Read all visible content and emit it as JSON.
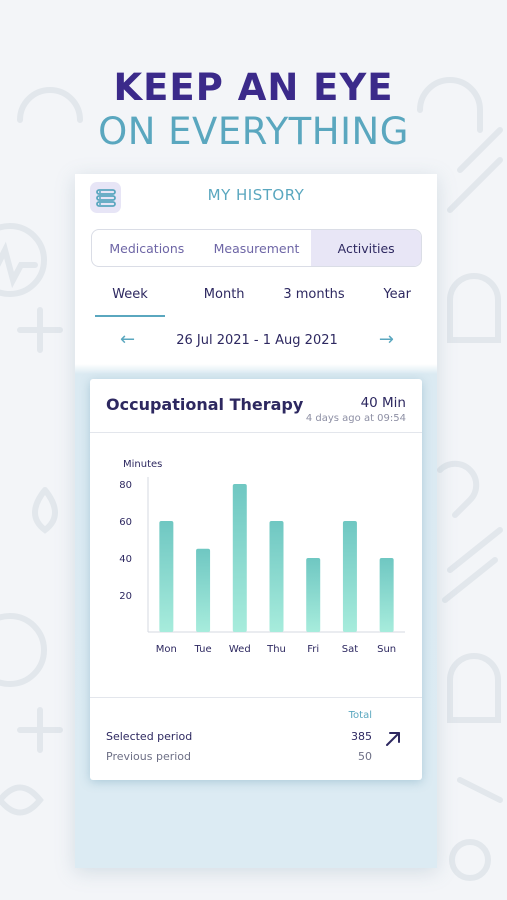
{
  "headline": {
    "line1": "KEEP AN EYE",
    "line2": "ON EVERYTHING"
  },
  "screen": {
    "title": "MY HISTORY",
    "menu_icon": "list-icon"
  },
  "tabs": [
    {
      "label": "Medications",
      "active": false
    },
    {
      "label": "Measurement",
      "active": false
    },
    {
      "label": "Activities",
      "active": true
    }
  ],
  "periods": [
    {
      "label": "Week",
      "active": true
    },
    {
      "label": "Month",
      "active": false
    },
    {
      "label": "3 months",
      "active": false
    },
    {
      "label": "Year",
      "active": false
    }
  ],
  "date_range": {
    "label": "26 Jul 2021 - 1 Aug 2021",
    "prev_icon": "arrow-left-icon",
    "next_icon": "arrow-right-icon"
  },
  "card": {
    "title": "Occupational Therapy",
    "duration": "40 Min",
    "timestamp": "4 days ago at 09:54",
    "total_label": "Total",
    "selected_label": "Selected period",
    "selected_value": "385",
    "previous_label": "Previous period",
    "previous_value": "50",
    "trend_icon": "arrow-up-right-icon"
  },
  "colors": {
    "primary": "#3b2a8a",
    "accent": "#5aa7bf",
    "bar_top": "#6fc7c2",
    "bar_bottom": "#a7ecdc"
  },
  "chart_data": {
    "type": "bar",
    "ylabel": "Minutes",
    "categories": [
      "Mon",
      "Tue",
      "Wed",
      "Thu",
      "Fri",
      "Sat",
      "Sun"
    ],
    "values": [
      60,
      45,
      80,
      60,
      40,
      60,
      40
    ],
    "yticks": [
      20,
      40,
      60,
      80
    ],
    "ylim": [
      0,
      80
    ],
    "grid": false
  }
}
